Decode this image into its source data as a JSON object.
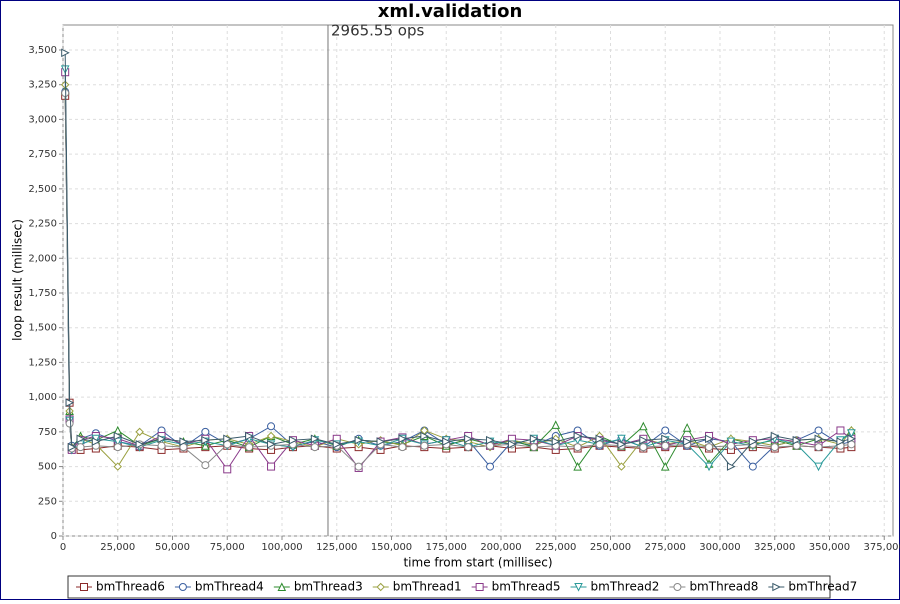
{
  "chart_data": {
    "type": "line",
    "title": "xml.validation",
    "x_label": "time from start (millisec)",
    "y_label": "loop result (millisec)",
    "annotation": {
      "x": 121000,
      "label": "2965.55 ops"
    },
    "xlim": [
      0,
      379000
    ],
    "xticks": [
      0,
      {
        "value": 25000,
        "label": "25,000"
      },
      {
        "value": 50000,
        "label": "50,000"
      },
      {
        "value": 75000,
        "label": "75,000"
      },
      {
        "value": 100000,
        "label": "100,000"
      },
      {
        "value": 125000,
        "label": "125,000"
      },
      {
        "value": 150000,
        "label": "150,000"
      },
      {
        "value": 175000,
        "label": "175,000"
      },
      {
        "value": 200000,
        "label": "200,000"
      },
      {
        "value": 225000,
        "label": "225,000"
      },
      {
        "value": 250000,
        "label": "250,000"
      },
      {
        "value": 275000,
        "label": "275,000"
      },
      {
        "value": 300000,
        "label": "300,000"
      },
      {
        "value": 325000,
        "label": "325,000"
      },
      {
        "value": 350000,
        "label": "350,000"
      },
      {
        "value": 375000,
        "label": "375,000"
      }
    ],
    "ylim": [
      0,
      3680
    ],
    "yticks": [
      0,
      250,
      500,
      750,
      {
        "value": 1000,
        "label": "1,000"
      },
      {
        "value": 1250,
        "label": "1,250"
      },
      {
        "value": 1500,
        "label": "1,500"
      },
      {
        "value": 1750,
        "label": "1,750"
      },
      {
        "value": 2000,
        "label": "2,000"
      },
      {
        "value": 2250,
        "label": "2,250"
      },
      {
        "value": 2500,
        "label": "2,500"
      },
      {
        "value": 2750,
        "label": "2,750"
      },
      {
        "value": 3000,
        "label": "3,000"
      },
      {
        "value": 3250,
        "label": "3,250"
      },
      {
        "value": 3500,
        "label": "3,500"
      }
    ],
    "grid": true,
    "x": [
      1000,
      3000,
      4000,
      8000,
      15000,
      25000,
      35000,
      45000,
      55000,
      65000,
      75000,
      85000,
      95000,
      105000,
      115000,
      125000,
      135000,
      145000,
      155000,
      165000,
      175000,
      185000,
      195000,
      205000,
      215000,
      225000,
      235000,
      245000,
      255000,
      265000,
      275000,
      285000,
      295000,
      305000,
      315000,
      325000,
      335000,
      345000,
      355000,
      360000
    ],
    "series": [
      {
        "name": "bmThread6",
        "color": "#8b2a2a",
        "marker": "square",
        "values": [
          3170,
          960,
          640,
          620,
          630,
          650,
          640,
          620,
          630,
          640,
          650,
          630,
          620,
          640,
          650,
          630,
          640,
          620,
          650,
          640,
          630,
          640,
          650,
          630,
          640,
          620,
          630,
          650,
          640,
          630,
          640,
          650,
          630,
          620,
          640,
          630,
          650,
          640,
          630,
          640
        ]
      },
      {
        "name": "bmThread4",
        "color": "#3a5fa0",
        "marker": "circle",
        "values": [
          3200,
          820,
          650,
          700,
          740,
          680,
          650,
          760,
          640,
          750,
          660,
          700,
          790,
          650,
          680,
          640,
          700,
          650,
          680,
          760,
          660,
          690,
          500,
          680,
          650,
          720,
          760,
          650,
          700,
          640,
          760,
          650,
          700,
          680,
          500,
          650,
          690,
          760,
          660,
          680
        ]
      },
      {
        "name": "bmThread3",
        "color": "#2e8b2e",
        "marker": "triangle",
        "values": [
          3210,
          900,
          630,
          720,
          690,
          760,
          650,
          700,
          680,
          650,
          690,
          640,
          720,
          660,
          700,
          650,
          690,
          680,
          660,
          720,
          650,
          700,
          660,
          690,
          640,
          800,
          500,
          720,
          650,
          790,
          500,
          780,
          520,
          700,
          660,
          690,
          650,
          700,
          680,
          760
        ]
      },
      {
        "name": "bmThread1",
        "color": "#9aa040",
        "marker": "diamond",
        "values": [
          3250,
          900,
          640,
          700,
          660,
          500,
          750,
          680,
          640,
          690,
          700,
          660,
          720,
          680,
          640,
          700,
          660,
          690,
          650,
          760,
          700,
          680,
          640,
          690,
          660,
          700,
          640,
          720,
          500,
          700,
          660,
          690,
          640,
          700,
          680,
          650,
          690,
          700,
          660,
          760
        ]
      },
      {
        "name": "bmThread5",
        "color": "#8a3a8a",
        "marker": "square",
        "values": [
          3340,
          840,
          620,
          690,
          720,
          700,
          650,
          720,
          660,
          700,
          480,
          720,
          500,
          690,
          650,
          700,
          490,
          680,
          710,
          660,
          690,
          720,
          650,
          700,
          690,
          650,
          720,
          690,
          660,
          700,
          650,
          690,
          720,
          660,
          690,
          700,
          680,
          650,
          760,
          700
        ]
      },
      {
        "name": "bmThread2",
        "color": "#2a9a9a",
        "marker": "triangle-down",
        "values": [
          3360,
          830,
          620,
          660,
          700,
          680,
          640,
          690,
          660,
          680,
          650,
          700,
          660,
          640,
          690,
          660,
          680,
          650,
          700,
          660,
          690,
          640,
          680,
          660,
          700,
          650,
          690,
          660,
          700,
          640,
          690,
          660,
          500,
          680,
          650,
          700,
          660,
          500,
          690,
          740
        ]
      },
      {
        "name": "bmThread8",
        "color": "#888888",
        "marker": "circle",
        "values": [
          3190,
          810,
          630,
          640,
          650,
          640,
          660,
          650,
          640,
          510,
          660,
          640,
          650,
          660,
          640,
          650,
          500,
          660,
          640,
          650,
          660,
          640,
          650,
          660,
          640,
          650,
          640,
          660,
          650,
          640,
          650,
          660,
          640,
          650,
          660,
          640,
          650,
          640,
          650,
          660
        ]
      },
      {
        "name": "bmThread7",
        "color": "#3a5a6a",
        "marker": "triangle-right",
        "values": [
          3480,
          960,
          640,
          700,
          680,
          720,
          660,
          700,
          680,
          690,
          700,
          720,
          660,
          690,
          700,
          660,
          690,
          680,
          700,
          720,
          680,
          700,
          690,
          660,
          700,
          680,
          720,
          700,
          660,
          690,
          700,
          680,
          700,
          500,
          680,
          720,
          690,
          700,
          680,
          700
        ]
      }
    ]
  }
}
